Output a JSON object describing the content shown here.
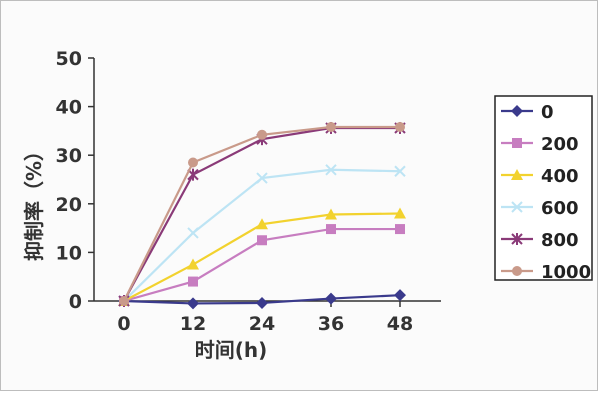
{
  "chart_data": {
    "type": "line",
    "xlabel": "时间(h)",
    "ylabel": "抑制率（%）",
    "x": [
      0,
      12,
      24,
      36,
      48
    ],
    "ylim": [
      0,
      50
    ],
    "yticks": [
      0,
      10,
      20,
      30,
      40,
      50
    ],
    "grid": false,
    "legend_position": "right",
    "series": [
      {
        "name": "0",
        "values": [
          0,
          -0.5,
          -0.4,
          0.5,
          1.2
        ],
        "color": "#3a3a8c",
        "marker": "diamond"
      },
      {
        "name": "200",
        "values": [
          0,
          4.0,
          12.5,
          14.8,
          14.8
        ],
        "color": "#c77dc0",
        "marker": "square"
      },
      {
        "name": "400",
        "values": [
          0,
          7.5,
          15.8,
          17.8,
          18.0
        ],
        "color": "#f2d22e",
        "marker": "triangle"
      },
      {
        "name": "600",
        "values": [
          0,
          14.0,
          25.3,
          27.0,
          26.7
        ],
        "color": "#bde4f4",
        "marker": "x"
      },
      {
        "name": "800",
        "values": [
          0,
          26.0,
          33.3,
          35.6,
          35.6
        ],
        "color": "#8a3a78",
        "marker": "star"
      },
      {
        "name": "1000",
        "values": [
          0,
          28.5,
          34.2,
          35.8,
          35.8
        ],
        "color": "#c99a8a",
        "marker": "circle"
      }
    ]
  }
}
